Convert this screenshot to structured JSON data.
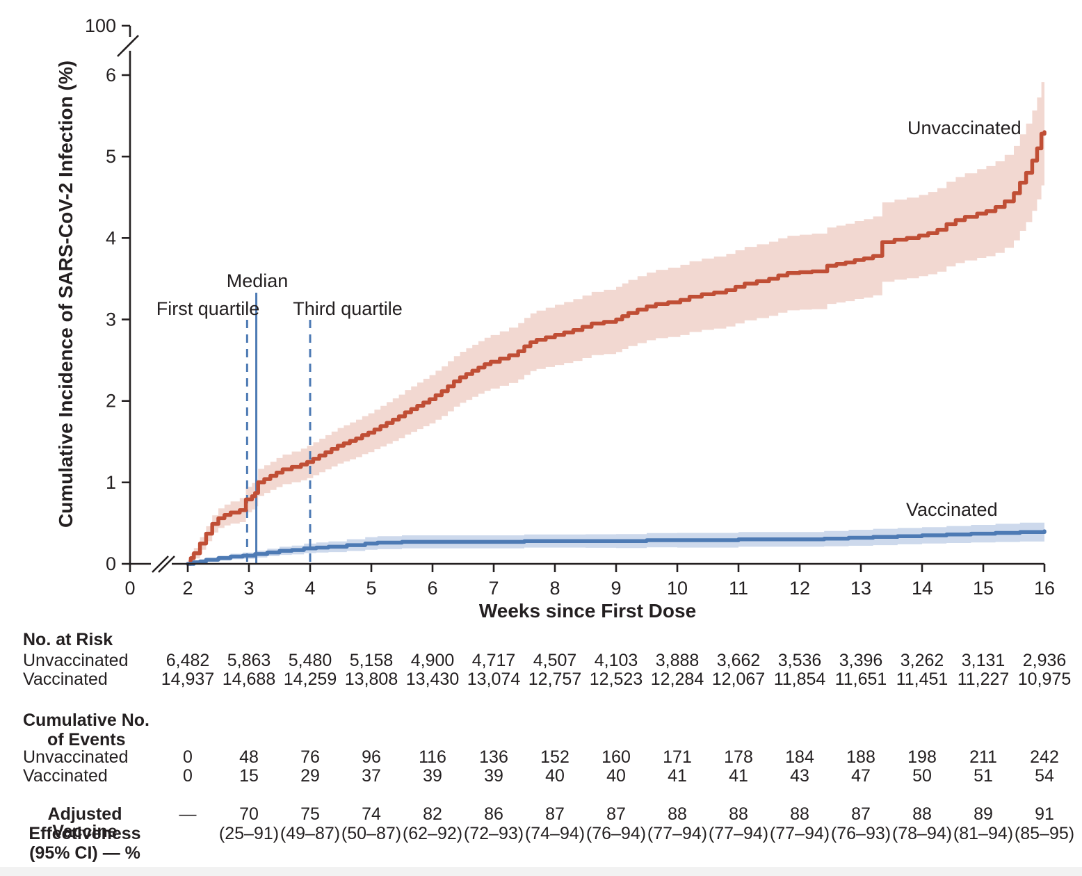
{
  "chart_data": {
    "type": "line",
    "subtype": "kaplan-meier-step-cumulative-incidence",
    "xlabel": "Weeks since First Dose",
    "ylabel": "Cumulative Incidence of SARS-CoV-2 Infection (%)",
    "x_ticks": [
      {
        "w": 0,
        "label": "0"
      },
      {
        "w": 2,
        "label": "2"
      },
      {
        "w": 3,
        "label": "3"
      },
      {
        "w": 4,
        "label": "4"
      },
      {
        "w": 5,
        "label": "5"
      },
      {
        "w": 6,
        "label": "6"
      },
      {
        "w": 7,
        "label": "7"
      },
      {
        "w": 8,
        "label": "8"
      },
      {
        "w": 9,
        "label": "9"
      },
      {
        "w": 10,
        "label": "10"
      },
      {
        "w": 11,
        "label": "11"
      },
      {
        "w": 12,
        "label": "12"
      },
      {
        "w": 13,
        "label": "13"
      },
      {
        "w": 14,
        "label": "14"
      },
      {
        "w": 15,
        "label": "15"
      },
      {
        "w": 16,
        "label": "16"
      }
    ],
    "y_ticks": [
      {
        "v": 0,
        "label": "0"
      },
      {
        "v": 1,
        "label": "1"
      },
      {
        "v": 2,
        "label": "2"
      },
      {
        "v": 3,
        "label": "3"
      },
      {
        "v": 4,
        "label": "4"
      },
      {
        "v": 5,
        "label": "5"
      },
      {
        "v": 6,
        "label": "6"
      },
      {
        "v": 100,
        "label": "100"
      }
    ],
    "axis_breaks": {
      "x_between": [
        0,
        2
      ],
      "y_between": [
        6,
        100
      ]
    },
    "ylim": [
      0,
      6.6
    ],
    "grid": false,
    "annotations": {
      "median": {
        "label": "Median",
        "week": 3.12,
        "style": "solid"
      },
      "first_quartile": {
        "label": "First quartile",
        "week": 2.97,
        "style": "dashed"
      },
      "third_quartile": {
        "label": "Third quartile",
        "week": 4.0,
        "style": "dashed"
      },
      "line_color": "#4d7ab4"
    },
    "series": [
      {
        "name": "Unvaccinated",
        "color": "#c04e35",
        "band_color": "#f2d8d1",
        "points": [
          [
            2.0,
            0
          ],
          [
            2.05,
            0.07
          ],
          [
            2.1,
            0.13
          ],
          [
            2.2,
            0.25
          ],
          [
            2.3,
            0.37
          ],
          [
            2.4,
            0.49
          ],
          [
            2.5,
            0.56
          ],
          [
            2.6,
            0.6
          ],
          [
            2.7,
            0.63
          ],
          [
            2.85,
            0.66
          ],
          [
            2.95,
            0.79
          ],
          [
            3.05,
            0.83
          ],
          [
            3.1,
            0.87
          ],
          [
            3.15,
            1.0
          ],
          [
            3.25,
            1.04
          ],
          [
            3.35,
            1.08
          ],
          [
            3.45,
            1.12
          ],
          [
            3.55,
            1.16
          ],
          [
            3.7,
            1.19
          ],
          [
            3.85,
            1.22
          ],
          [
            3.95,
            1.25
          ],
          [
            4.05,
            1.29
          ],
          [
            4.15,
            1.33
          ],
          [
            4.25,
            1.37
          ],
          [
            4.35,
            1.41
          ],
          [
            4.45,
            1.45
          ],
          [
            4.55,
            1.48
          ],
          [
            4.65,
            1.51
          ],
          [
            4.75,
            1.54
          ],
          [
            4.85,
            1.58
          ],
          [
            4.95,
            1.61
          ],
          [
            5.05,
            1.65
          ],
          [
            5.15,
            1.69
          ],
          [
            5.25,
            1.73
          ],
          [
            5.35,
            1.77
          ],
          [
            5.45,
            1.81
          ],
          [
            5.55,
            1.86
          ],
          [
            5.65,
            1.9
          ],
          [
            5.75,
            1.94
          ],
          [
            5.85,
            1.98
          ],
          [
            5.95,
            2.02
          ],
          [
            6.05,
            2.07
          ],
          [
            6.15,
            2.12
          ],
          [
            6.25,
            2.18
          ],
          [
            6.35,
            2.24
          ],
          [
            6.45,
            2.29
          ],
          [
            6.55,
            2.33
          ],
          [
            6.65,
            2.37
          ],
          [
            6.75,
            2.41
          ],
          [
            6.85,
            2.45
          ],
          [
            6.95,
            2.48
          ],
          [
            7.1,
            2.52
          ],
          [
            7.25,
            2.56
          ],
          [
            7.4,
            2.61
          ],
          [
            7.5,
            2.67
          ],
          [
            7.6,
            2.72
          ],
          [
            7.7,
            2.75
          ],
          [
            7.85,
            2.78
          ],
          [
            8.0,
            2.81
          ],
          [
            8.15,
            2.84
          ],
          [
            8.3,
            2.87
          ],
          [
            8.45,
            2.91
          ],
          [
            8.6,
            2.95
          ],
          [
            8.8,
            2.97
          ],
          [
            9.0,
            3.0
          ],
          [
            9.1,
            3.04
          ],
          [
            9.2,
            3.08
          ],
          [
            9.35,
            3.12
          ],
          [
            9.5,
            3.16
          ],
          [
            9.65,
            3.19
          ],
          [
            9.85,
            3.21
          ],
          [
            10.05,
            3.24
          ],
          [
            10.2,
            3.28
          ],
          [
            10.4,
            3.31
          ],
          [
            10.6,
            3.33
          ],
          [
            10.8,
            3.36
          ],
          [
            10.95,
            3.4
          ],
          [
            11.1,
            3.44
          ],
          [
            11.3,
            3.47
          ],
          [
            11.5,
            3.5
          ],
          [
            11.65,
            3.54
          ],
          [
            11.8,
            3.57
          ],
          [
            12.0,
            3.58
          ],
          [
            12.2,
            3.59
          ],
          [
            12.45,
            3.66
          ],
          [
            12.6,
            3.68
          ],
          [
            12.75,
            3.7
          ],
          [
            12.9,
            3.73
          ],
          [
            13.05,
            3.75
          ],
          [
            13.2,
            3.78
          ],
          [
            13.35,
            3.95
          ],
          [
            13.55,
            3.98
          ],
          [
            13.75,
            4.0
          ],
          [
            13.95,
            4.03
          ],
          [
            14.1,
            4.06
          ],
          [
            14.25,
            4.1
          ],
          [
            14.4,
            4.17
          ],
          [
            14.55,
            4.22
          ],
          [
            14.7,
            4.26
          ],
          [
            14.9,
            4.3
          ],
          [
            15.05,
            4.33
          ],
          [
            15.2,
            4.38
          ],
          [
            15.35,
            4.45
          ],
          [
            15.5,
            4.55
          ],
          [
            15.6,
            4.68
          ],
          [
            15.7,
            4.8
          ],
          [
            15.8,
            4.95
          ],
          [
            15.88,
            5.1
          ],
          [
            15.95,
            5.28
          ],
          [
            16.0,
            5.3
          ]
        ],
        "band_delta": [
          [
            2,
            0.05
          ],
          [
            2.5,
            0.12
          ],
          [
            3,
            0.16
          ],
          [
            3.5,
            0.18
          ],
          [
            4,
            0.2
          ],
          [
            5,
            0.24
          ],
          [
            6,
            0.3
          ],
          [
            7,
            0.33
          ],
          [
            8,
            0.37
          ],
          [
            9,
            0.4
          ],
          [
            10,
            0.43
          ],
          [
            11,
            0.45
          ],
          [
            12,
            0.46
          ],
          [
            13,
            0.48
          ],
          [
            14,
            0.5
          ],
          [
            15,
            0.55
          ],
          [
            15.5,
            0.58
          ],
          [
            16,
            0.64
          ]
        ]
      },
      {
        "name": "Vaccinated",
        "color": "#4d7ab4",
        "band_color": "#cdd9ec",
        "points": [
          [
            2.0,
            0
          ],
          [
            2.1,
            0.02
          ],
          [
            2.2,
            0.03
          ],
          [
            2.3,
            0.05
          ],
          [
            2.5,
            0.07
          ],
          [
            2.7,
            0.09
          ],
          [
            2.9,
            0.1
          ],
          [
            3.1,
            0.12
          ],
          [
            3.3,
            0.14
          ],
          [
            3.5,
            0.16
          ],
          [
            3.7,
            0.17
          ],
          [
            3.9,
            0.19
          ],
          [
            4.1,
            0.2
          ],
          [
            4.3,
            0.21
          ],
          [
            4.6,
            0.23
          ],
          [
            4.9,
            0.25
          ],
          [
            5.1,
            0.26
          ],
          [
            5.5,
            0.27
          ],
          [
            6.0,
            0.27
          ],
          [
            6.5,
            0.27
          ],
          [
            7.0,
            0.27
          ],
          [
            7.5,
            0.28
          ],
          [
            8.0,
            0.28
          ],
          [
            8.5,
            0.28
          ],
          [
            9.0,
            0.28
          ],
          [
            9.5,
            0.29
          ],
          [
            10.0,
            0.29
          ],
          [
            10.5,
            0.29
          ],
          [
            11.0,
            0.3
          ],
          [
            11.5,
            0.3
          ],
          [
            12.0,
            0.3
          ],
          [
            12.4,
            0.31
          ],
          [
            12.8,
            0.32
          ],
          [
            13.2,
            0.33
          ],
          [
            13.6,
            0.34
          ],
          [
            14.0,
            0.35
          ],
          [
            14.4,
            0.36
          ],
          [
            14.8,
            0.37
          ],
          [
            15.2,
            0.38
          ],
          [
            15.6,
            0.39
          ],
          [
            16.0,
            0.4
          ]
        ],
        "band_delta": [
          [
            2,
            0.01
          ],
          [
            2.5,
            0.03
          ],
          [
            3,
            0.04
          ],
          [
            4,
            0.06
          ],
          [
            5,
            0.08
          ],
          [
            6,
            0.08
          ],
          [
            8,
            0.08
          ],
          [
            10,
            0.09
          ],
          [
            12,
            0.09
          ],
          [
            13,
            0.1
          ],
          [
            14,
            0.1
          ],
          [
            15,
            0.11
          ],
          [
            16,
            0.12
          ]
        ]
      }
    ]
  },
  "risk_table": {
    "weeks": [
      2,
      3,
      4,
      5,
      6,
      7,
      8,
      9,
      10,
      11,
      12,
      13,
      14,
      15,
      16
    ],
    "sections": {
      "no_at_risk": {
        "title": "No. at Risk",
        "rows": [
          {
            "label": "Unvaccinated",
            "values": [
              "6,482",
              "5,863",
              "5,480",
              "5,158",
              "4,900",
              "4,717",
              "4,507",
              "4,103",
              "3,888",
              "3,662",
              "3,536",
              "3,396",
              "3,262",
              "3,131",
              "2,936"
            ]
          },
          {
            "label": "Vaccinated",
            "values": [
              "14,937",
              "14,688",
              "14,259",
              "13,808",
              "13,430",
              "13,074",
              "12,757",
              "12,523",
              "12,284",
              "12,067",
              "11,854",
              "11,651",
              "11,451",
              "11,227",
              "10,975"
            ]
          }
        ]
      },
      "cumulative_events": {
        "title_line1": "Cumulative No.",
        "title_line2": "of Events",
        "rows": [
          {
            "label": "Unvaccinated",
            "values": [
              "0",
              "48",
              "76",
              "96",
              "116",
              "136",
              "152",
              "160",
              "171",
              "178",
              "184",
              "188",
              "198",
              "211",
              "242"
            ]
          },
          {
            "label": "Vaccinated",
            "values": [
              "0",
              "15",
              "29",
              "37",
              "39",
              "39",
              "40",
              "40",
              "41",
              "41",
              "43",
              "47",
              "50",
              "51",
              "54"
            ]
          }
        ]
      },
      "vaccine_effectiveness": {
        "title_line1": "Adjusted Vaccine",
        "title_line2": "Effectiveness",
        "title_line3": "(95% CI) — %",
        "estimates": [
          "—",
          "70",
          "75",
          "74",
          "82",
          "86",
          "87",
          "87",
          "88",
          "88",
          "88",
          "87",
          "88",
          "89",
          "91"
        ],
        "ci": [
          "",
          "(25–91)",
          "(49–87)",
          "(50–87)",
          "(62–92)",
          "(72–93)",
          "(74–94)",
          "(76–94)",
          "(77–94)",
          "(77–94)",
          "(77–94)",
          "(76–93)",
          "(78–94)",
          "(81–94)",
          "(85–95)"
        ]
      }
    }
  }
}
